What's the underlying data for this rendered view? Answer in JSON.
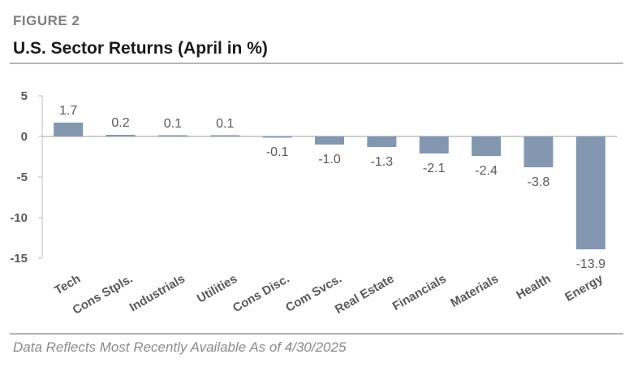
{
  "figure_label": "FIGURE 2",
  "footnote": "Data Reflects Most Recently Available As of 4/30/2025",
  "colors": {
    "bar": "#8497b0",
    "axis": "#bfbfbf",
    "text": "#595959",
    "rule": "#b5b5b5"
  },
  "chart_data": {
    "type": "bar",
    "title": "U.S. Sector Returns (April in %)",
    "xlabel": "",
    "ylabel": "",
    "ylim": [
      -15,
      5
    ],
    "yticks": [
      5,
      0,
      -5,
      -10,
      -15
    ],
    "ytick_labels": [
      "5",
      "0",
      "-5",
      "-10",
      "-15"
    ],
    "grid": false,
    "legend": "none",
    "categories": [
      "Tech",
      "Cons Stpls.",
      "Industrials",
      "Utilities",
      "Cons Disc.",
      "Com Svcs.",
      "Real Estate",
      "Financials",
      "Materials",
      "Health",
      "Energy"
    ],
    "values": [
      1.7,
      0.2,
      0.1,
      0.1,
      -0.1,
      -1.0,
      -1.3,
      -2.1,
      -2.4,
      -3.8,
      -13.9
    ],
    "value_labels": [
      "1.7",
      "0.2",
      "0.1",
      "0.1",
      "-0.1",
      "-1.0",
      "-1.3",
      "-2.1",
      "-2.4",
      "-3.8",
      "-13.9"
    ]
  }
}
